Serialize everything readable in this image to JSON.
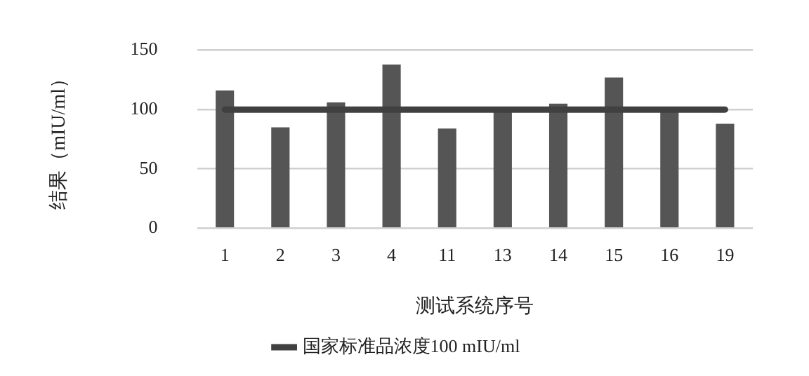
{
  "chart_data": {
    "type": "bar",
    "xlabel": "测试系统序号",
    "ylabel": "结果（mIU/ml）",
    "categories": [
      "1",
      "2",
      "3",
      "4",
      "11",
      "13",
      "14",
      "15",
      "16",
      "19"
    ],
    "series": [
      {
        "color": "#555555",
        "values": [
          116,
          85,
          106,
          138,
          84,
          100,
          105,
          127,
          99,
          88
        ]
      },
      {
        "type": "line",
        "name": "国家标准品浓度100 mIU/ml",
        "color": "#404040",
        "values": [
          100,
          100,
          100,
          100,
          100,
          100,
          100,
          100,
          100,
          100
        ]
      }
    ],
    "ylim": [
      0,
      150
    ],
    "yticks": [
      0,
      50,
      100,
      150
    ],
    "grid": "y",
    "legend": "bottom",
    "marker": "none",
    "line_style": "solid"
  }
}
